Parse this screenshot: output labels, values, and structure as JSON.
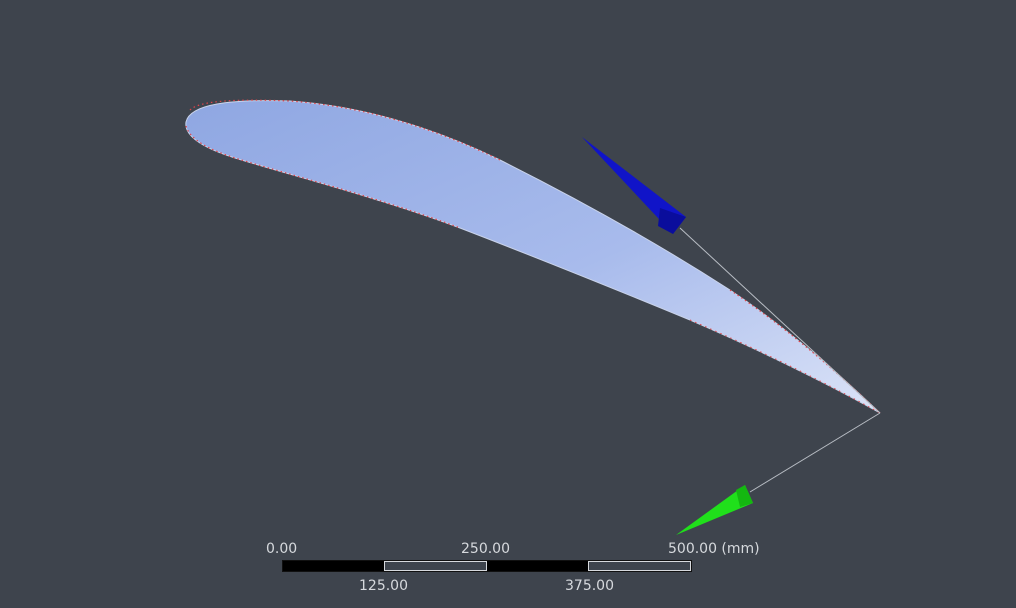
{
  "viewport": {
    "background_color": "#3e444d"
  },
  "model": {
    "airfoil_fill_color": "#9fb5e6",
    "edge_highlight_color": "#e0434a",
    "axis_colors": {
      "blue_axis": "#0b0fd0",
      "green_axis": "#22e01d"
    }
  },
  "scale_bar": {
    "labels_top": [
      "0.00",
      "250.00",
      "500.00 (mm)"
    ],
    "labels_bottom": [
      "125.00",
      "375.00"
    ],
    "segment_colors": [
      "#000000",
      "#3e444d",
      "#000000",
      "#3e444d"
    ]
  }
}
